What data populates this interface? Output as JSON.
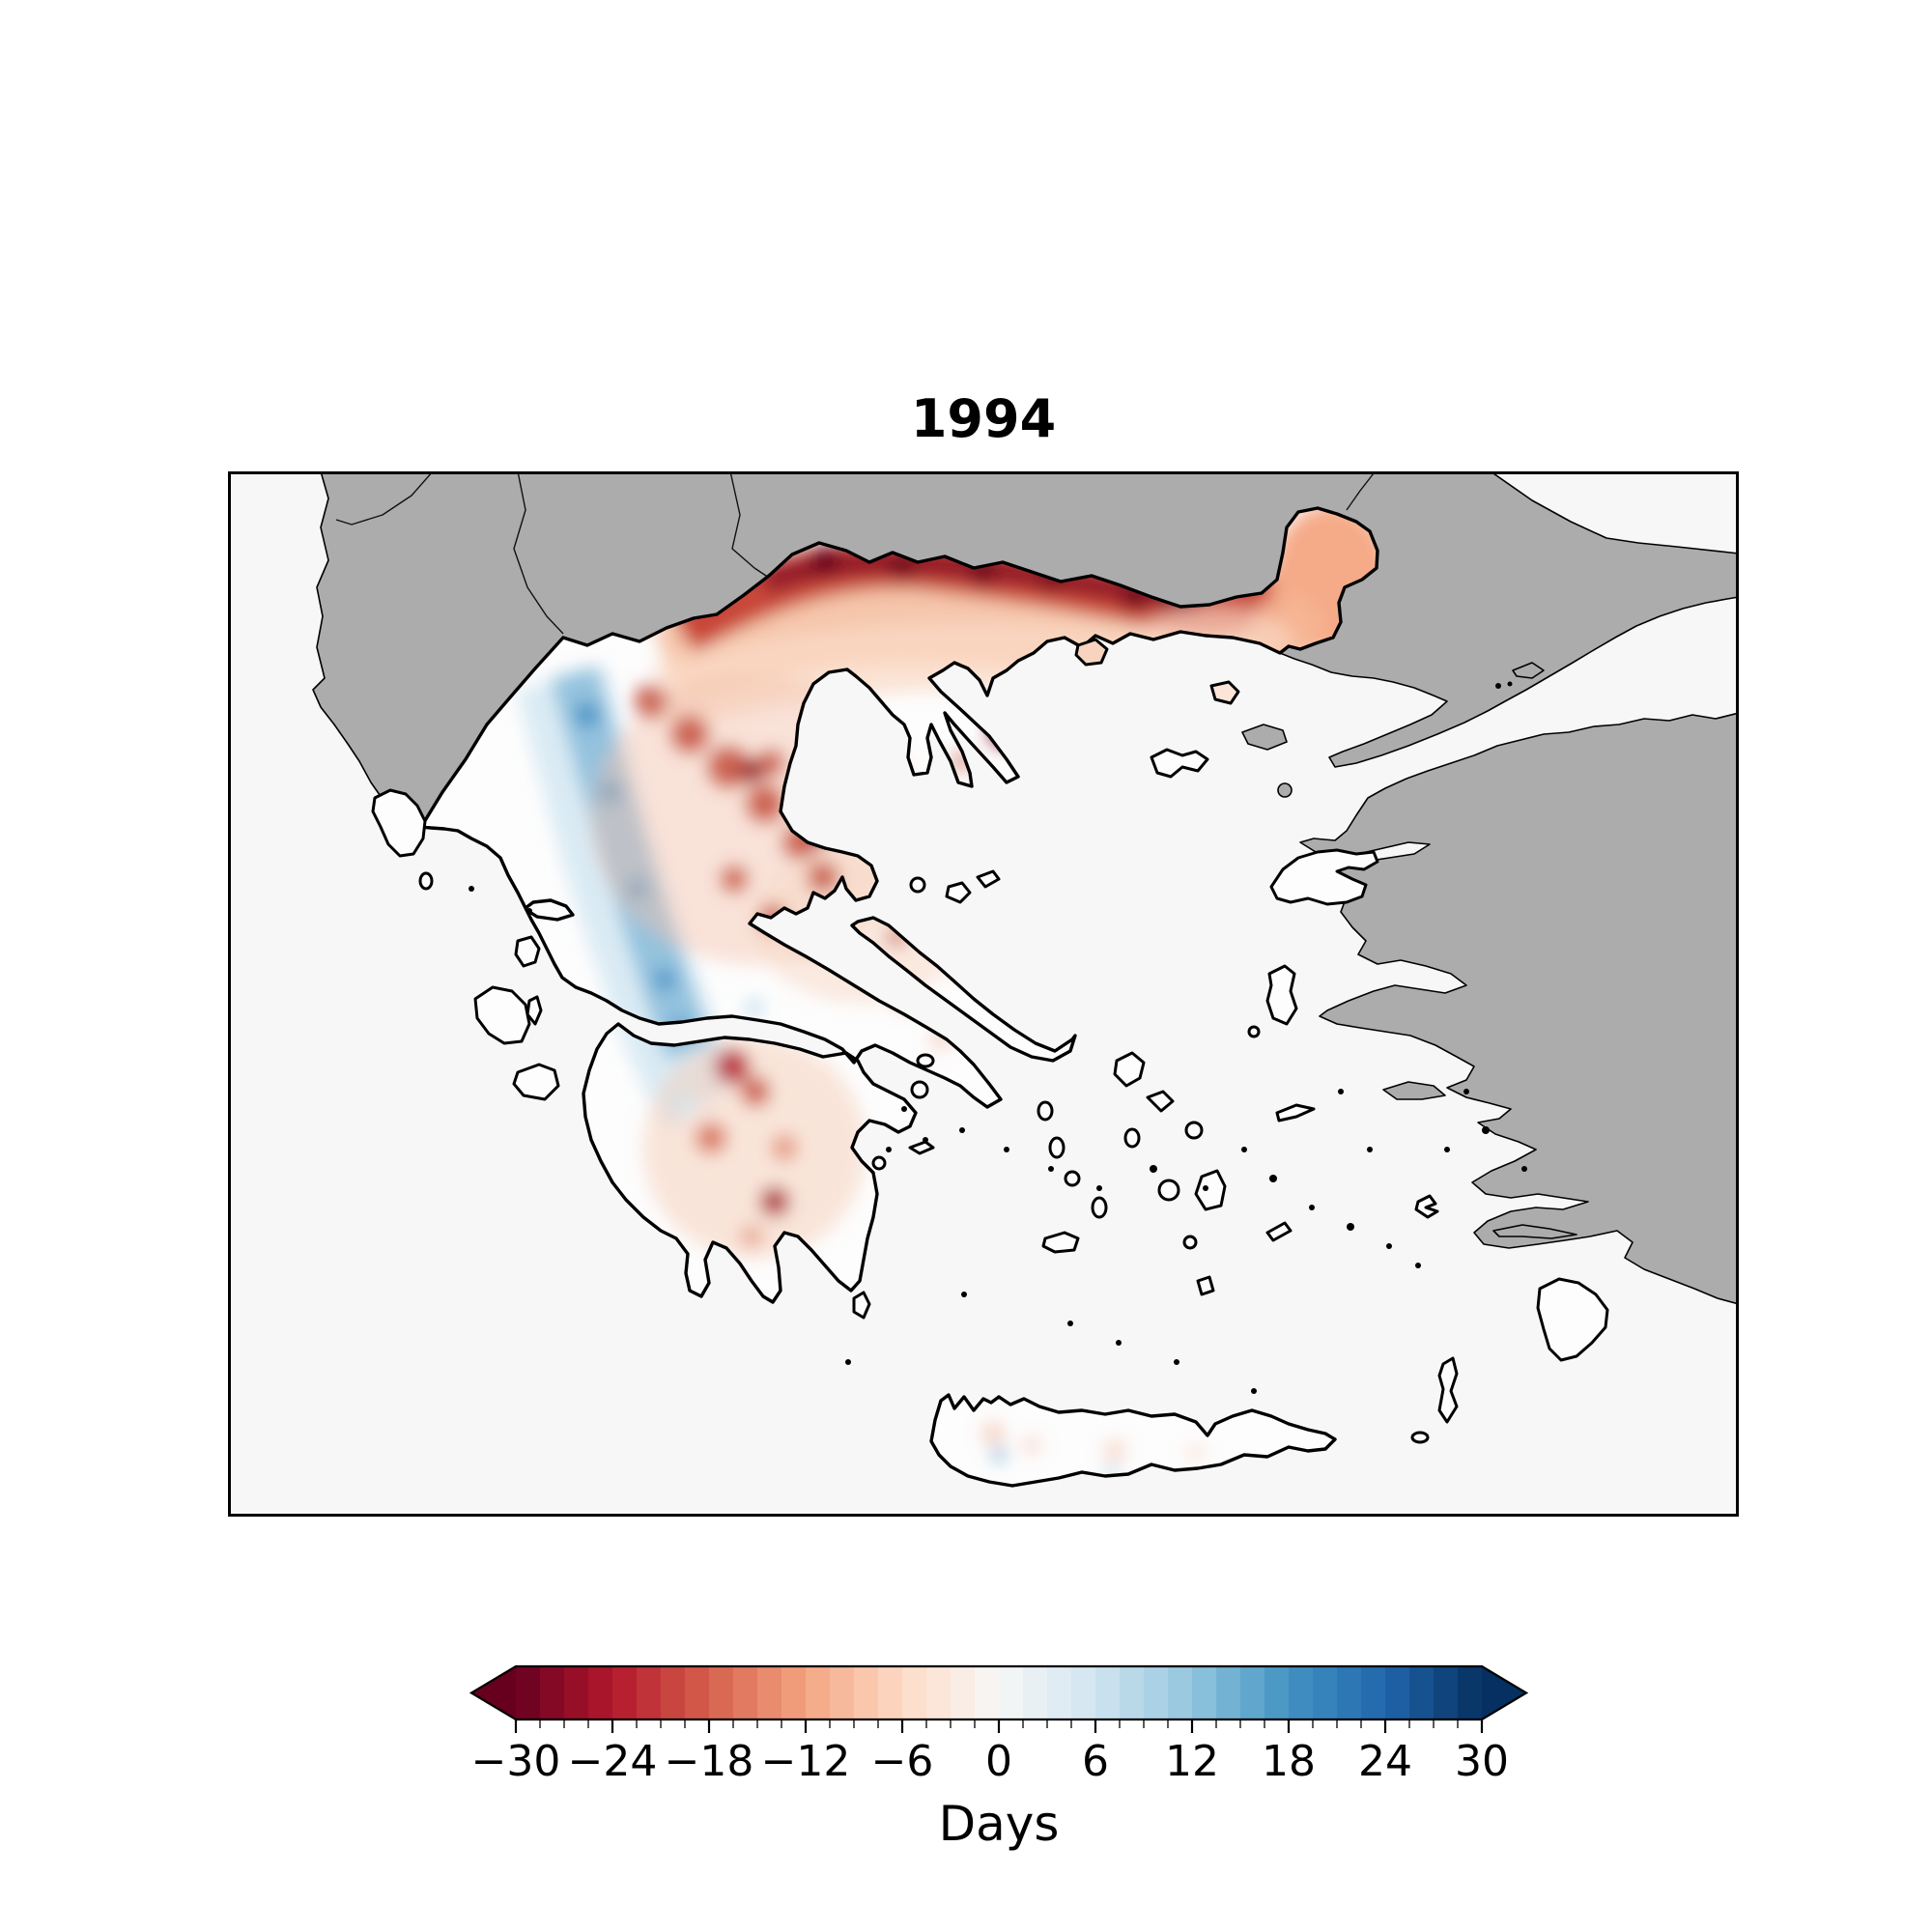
{
  "title": "1994",
  "map": {
    "region": "Greece",
    "sea_color": "#f7f7f7",
    "foreign_land_color": "#acacac",
    "data_land_color": "#fdfdfd",
    "coastline_color": "#000000"
  },
  "colorbar": {
    "label": "Days",
    "min": -30,
    "max": 30,
    "step": 1.5,
    "tick_labels": [
      "−30",
      "−24",
      "−18",
      "−12",
      "−6",
      "0",
      "6",
      "12",
      "18",
      "24",
      "30"
    ],
    "tick_values": [
      -30,
      -24,
      -18,
      -12,
      -6,
      0,
      6,
      12,
      18,
      24,
      30
    ],
    "minor_tick_step": 1.5,
    "extend": "both",
    "cmap_anchors": [
      "#67001f",
      "#b2182b",
      "#d6604d",
      "#f4a582",
      "#fddbc7",
      "#f7f7f7",
      "#d1e5f0",
      "#92c5de",
      "#4393c3",
      "#2166ac",
      "#053061"
    ]
  },
  "chart_data": {
    "type": "heatmap",
    "title": "1994",
    "units": "Days",
    "value_range": [
      -30,
      30
    ],
    "colormap": "RdBu (discrete, 1.5-day steps, extended arrows both ends)",
    "regions": [
      {
        "area": "Northern border belt (Greek Macedonia and Thrace)",
        "anomaly_days": "-15 to -30 (dark red)"
      },
      {
        "area": "Northeast Evros protrusion",
        "anomaly_days": "-6 to -12 (salmon)"
      },
      {
        "area": "Pindus / Epirus streak (northwest)",
        "anomaly_days": "+5 to +15 (blue)"
      },
      {
        "area": "Thessaly and central-west mainland",
        "anomaly_days": "mixed, mostly -3 to -15 (red mottle)"
      },
      {
        "area": "Northern and central Peloponnese",
        "anomaly_days": "-5 to -15 (red patches)"
      },
      {
        "area": "Eastern mainland, Aegean islands",
        "anomaly_days": "near 0 (white)"
      },
      {
        "area": "Crete",
        "anomaly_days": "near 0 with small +/- spots"
      }
    ]
  }
}
